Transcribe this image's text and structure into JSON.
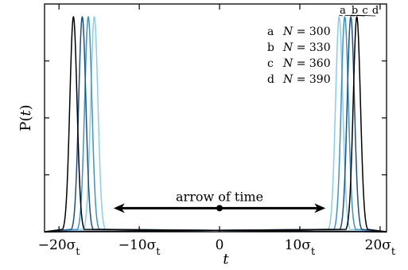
{
  "chart_data": {
    "type": "line",
    "xlabel": "t",
    "ylabel": "P(t)",
    "xlim": [
      -21.8,
      20.8
    ],
    "ylim": [
      0,
      1.06
    ],
    "x_ticks": [
      {
        "value": -20,
        "main": "−20σ",
        "sub": "t"
      },
      {
        "value": -10,
        "main": "−10σ",
        "sub": "t"
      },
      {
        "value": 0,
        "main": "0",
        "sub": ""
      },
      {
        "value": 10,
        "main": "10σ",
        "sub": "t"
      },
      {
        "value": 20,
        "main": "20σ",
        "sub": "t"
      }
    ],
    "series": [
      {
        "name": "N = 300",
        "letter": "a",
        "color": "#87CEEB",
        "peaks": [
          -15.6,
          14.9
        ],
        "width": 0.45,
        "height": 1.0
      },
      {
        "name": "N = 330",
        "letter": "b",
        "color": "#3A93C9",
        "peaks": [
          -16.35,
          15.6
        ],
        "width": 0.45,
        "height": 1.0
      },
      {
        "name": "N = 360",
        "letter": "c",
        "color": "#1B4F8A",
        "peaks": [
          -17.1,
          16.35
        ],
        "width": 0.45,
        "height": 1.0
      },
      {
        "name": "N = 390",
        "letter": "d",
        "color": "#000000",
        "peaks": [
          -18.2,
          17.1
        ],
        "width": 0.45,
        "height": 1.0
      }
    ],
    "legend_position": "top-right",
    "annotation": {
      "label": "arrow of time",
      "from": -13.2,
      "to": 13.2,
      "y": 0.11,
      "dot_x": 0
    }
  }
}
